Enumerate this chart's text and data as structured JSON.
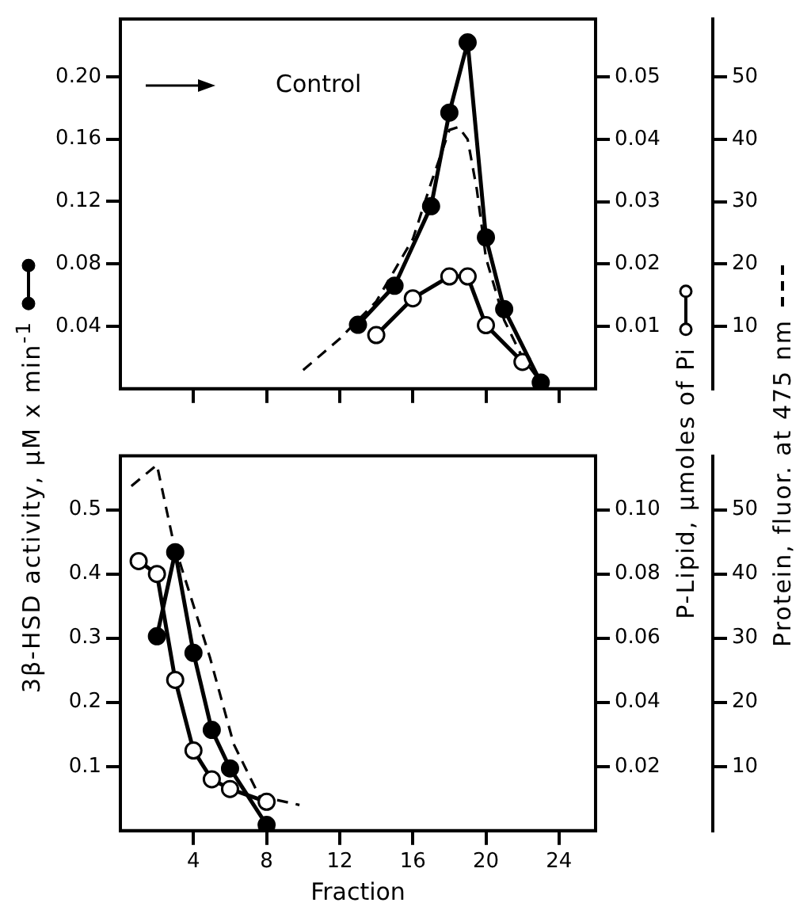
{
  "chart_data": [
    {
      "type": "line",
      "ylabel": "3β-HSD activity, μM x min$^{-1}$",
      "y2label": "P-Lipid, μmoles of Pi",
      "y3label": "Protein, fluor. at 475 nm",
      "annotations": [
        "Control"
      ],
      "xlim": [
        0,
        26
      ],
      "xticks": [
        4,
        8,
        12,
        16,
        20,
        24
      ],
      "tick_labels": "y",
      "ylim": [
        0,
        0.237
      ],
      "yticks": [
        0.04,
        0.08,
        0.12,
        0.16,
        {
          "value": 0.2,
          "label": "0.20"
        }
      ],
      "y2lim": [
        0,
        0.0593
      ],
      "y2ticks": [
        0.01,
        0.02,
        0.03,
        0.04,
        0.05
      ],
      "y3lim": [
        0,
        59.3
      ],
      "y3ticks": [
        10,
        20,
        30,
        40,
        50
      ],
      "grid": false,
      "legend": false,
      "series": [
        {
          "color": "#000000",
          "marker": "circle",
          "line_style": "solid",
          "x": [
            13,
            15,
            17,
            18,
            19,
            20,
            21,
            23
          ],
          "values": [
            0.041,
            0.066,
            0.117,
            0.177,
            0.222,
            0.097,
            0.051,
            0.004
          ]
        },
        {
          "color": "#000000",
          "colors": [
            "#ffffff",
            "#ffffff",
            "#ffffff",
            "#ffffff",
            "#ffffff",
            "#ffffff"
          ],
          "marker": "circle",
          "line_style": "solid",
          "axis": "y2",
          "x": [
            14,
            16,
            18,
            19,
            20,
            22
          ],
          "values": [
            0.0086,
            0.0145,
            0.018,
            0.018,
            0.0102,
            0.0043
          ]
        },
        {
          "color": "#000000",
          "marker": "none",
          "line_style": "dashed",
          "axis": "y3",
          "x": [
            10,
            12,
            14,
            16,
            17,
            18,
            18.5,
            19,
            19.5,
            20,
            21,
            22,
            23
          ],
          "values": [
            3,
            8,
            14,
            24,
            33,
            41.5,
            42,
            40,
            32,
            21,
            11,
            5,
            1
          ]
        }
      ]
    },
    {
      "type": "line",
      "xlabel": "Fraction",
      "xlim": [
        0,
        26
      ],
      "xticks": [
        4,
        8,
        12,
        16,
        20,
        24
      ],
      "ylim": [
        0,
        0.584
      ],
      "yticks": [
        0.1,
        0.2,
        0.3,
        0.4,
        0.5
      ],
      "y2lim": [
        0,
        0.1168
      ],
      "y2ticks": [
        0.02,
        0.04,
        0.06,
        0.08,
        {
          "value": 0.1,
          "label": "0.10"
        }
      ],
      "y3lim": [
        0,
        58.4
      ],
      "y3ticks": [
        10,
        20,
        30,
        40,
        50
      ],
      "grid": false,
      "legend": false,
      "series": [
        {
          "color": "#000000",
          "marker": "circle",
          "line_style": "solid",
          "x": [
            2,
            3,
            4,
            5,
            6,
            8
          ],
          "values": [
            0.303,
            0.434,
            0.277,
            0.157,
            0.097,
            0.009
          ]
        },
        {
          "color": "#000000",
          "colors": [
            "#ffffff",
            "#ffffff",
            "#ffffff",
            "#ffffff",
            "#ffffff",
            "#ffffff",
            "#ffffff"
          ],
          "marker": "circle",
          "line_style": "solid",
          "axis": "y2",
          "x": [
            1,
            2,
            3,
            4,
            5,
            6,
            8
          ],
          "values": [
            0.084,
            0.08,
            0.047,
            0.025,
            0.016,
            0.013,
            0.009
          ]
        },
        {
          "color": "#000000",
          "marker": "none",
          "line_style": "dashed",
          "axis": "y3",
          "x": [
            0.6,
            2,
            2.9,
            4.9,
            6.2,
            7.6,
            9.8
          ],
          "values": [
            53.7,
            57,
            45,
            27,
            13.5,
            5.4,
            4
          ]
        }
      ]
    }
  ]
}
